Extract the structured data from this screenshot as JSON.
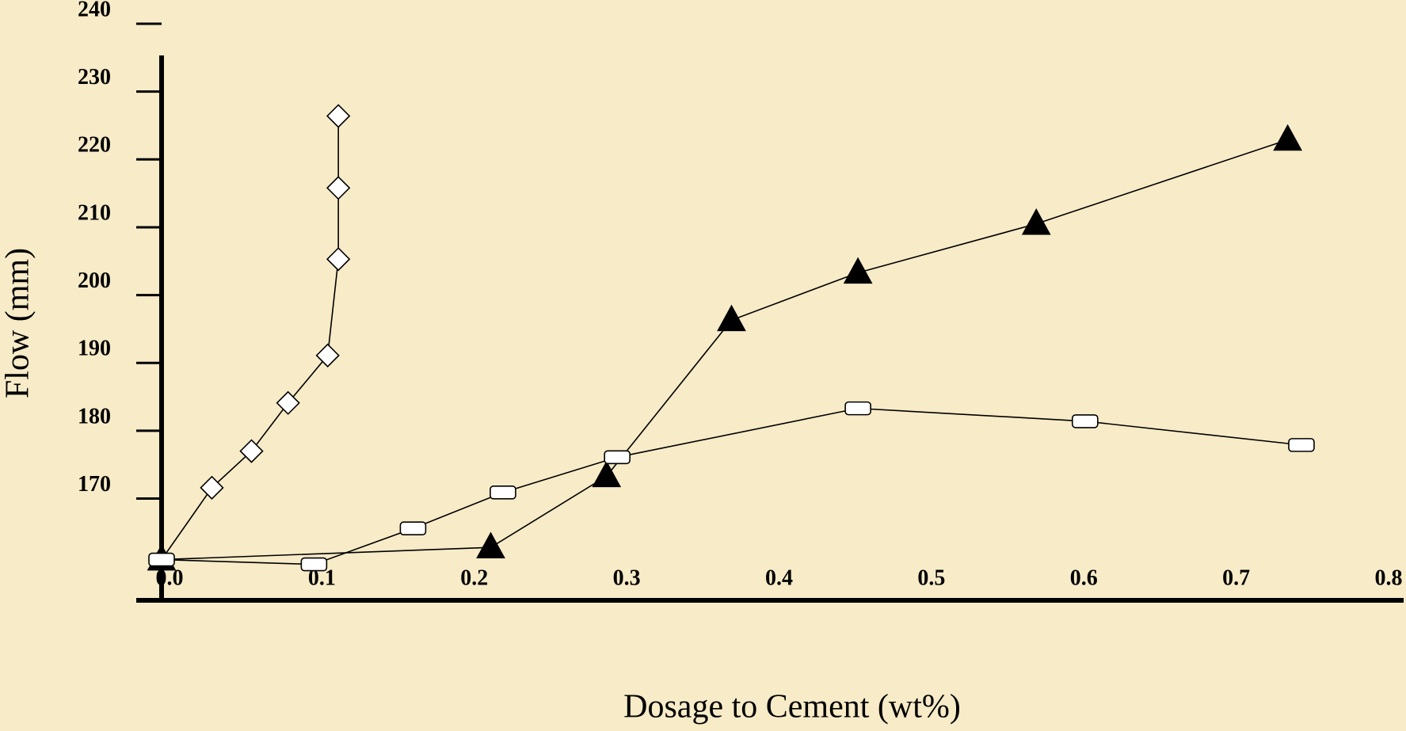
{
  "chart_data": {
    "type": "line",
    "x_label": "Dosage to Cement (wt%)",
    "y_label": "Flow (mm)",
    "xlim": [
      0,
      0.8
    ],
    "xticks": [
      {
        "value": 0,
        "label": "0.0"
      },
      0.1,
      0.2,
      0.3,
      0.4,
      0.5,
      0.6,
      0.7,
      0.8
    ],
    "ylim": [
      155,
      240
    ],
    "yticks": [
      170,
      180,
      190,
      200,
      210,
      220,
      230,
      240
    ],
    "series": [
      {
        "marker": "diamond",
        "color": "#000000",
        "fill": "#ffffff",
        "x": [
          0,
          0.033,
          0.059,
          0.083,
          0.109,
          0.116,
          0.116,
          0.116
        ],
        "values": [
          161,
          171.6,
          177,
          184.1,
          191.1,
          205.3,
          215.8,
          226.4
        ]
      },
      {
        "marker": "triangle",
        "color": "#000000",
        "fill": "#000000",
        "x": [
          0,
          0.216,
          0.292,
          0.374,
          0.457,
          0.574,
          0.739
        ],
        "values": [
          161,
          162.8,
          173.3,
          196.3,
          203.3,
          210.5,
          222.9
        ]
      },
      {
        "marker": "square",
        "color": "#000000",
        "fill": "#ffffff",
        "x": [
          0,
          0.1,
          0.165,
          0.224,
          0.299,
          0.457,
          0.606,
          0.748
        ],
        "values": [
          161,
          160.3,
          165.6,
          170.9,
          176.1,
          183.3,
          181.4,
          177.9
        ]
      }
    ]
  }
}
